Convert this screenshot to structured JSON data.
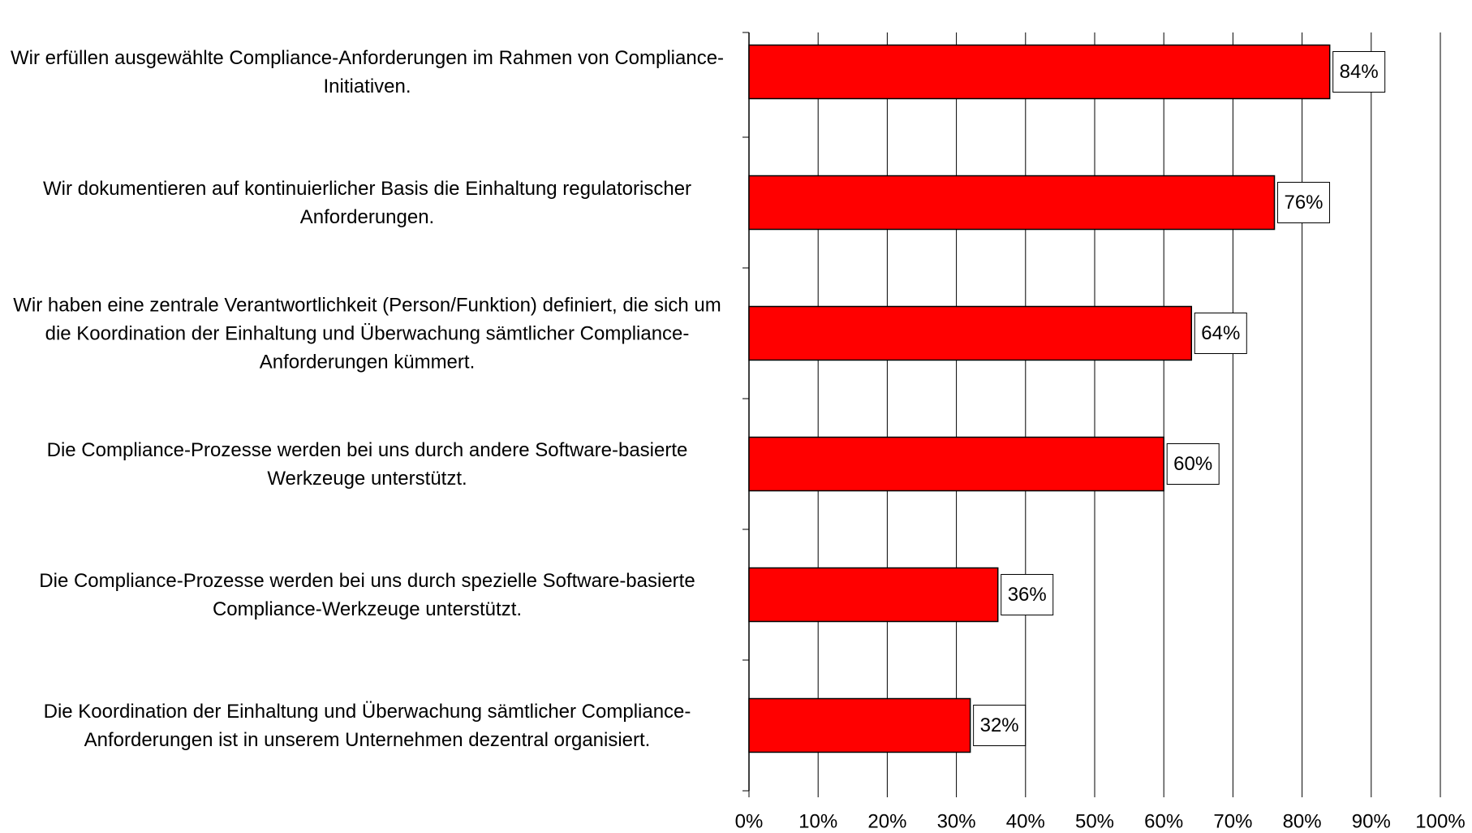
{
  "chart_data": {
    "type": "hbar",
    "categories": [
      "Wir erfüllen ausgewählte Compliance-Anforderungen im Rahmen von Compliance-Initiativen.",
      "Wir dokumentieren auf kontinuierlicher Basis die Einhaltung regulatorischer Anforderungen.",
      "Wir haben eine zentrale Verantwortlichkeit (Person/Funktion) definiert, die sich um die Koordination der Einhaltung und Überwachung sämtlicher Compliance-Anforderungen kümmert.",
      "Die Compliance-Prozesse werden bei uns durch andere Software-basierte Werkzeuge unterstützt.",
      "Die Compliance-Prozesse werden bei uns durch spezielle Software-basierte Compliance-Werkzeuge unterstützt.",
      "Die Koordination der Einhaltung und Überwachung sämtlicher Compliance-Anforderungen ist in unserem Unternehmen dezentral organisiert."
    ],
    "values": [
      84,
      76,
      64,
      60,
      36,
      32
    ],
    "value_labels": [
      "84%",
      "76%",
      "64%",
      "60%",
      "36%",
      "32%"
    ],
    "color": "#ff0000",
    "xlim": [
      0,
      100
    ],
    "xticks": [
      {
        "value": 0,
        "label": "0%"
      },
      {
        "value": 10,
        "label": "10%"
      },
      {
        "value": 20,
        "label": "20%"
      },
      {
        "value": 30,
        "label": "30%"
      },
      {
        "value": 40,
        "label": "40%"
      },
      {
        "value": 50,
        "label": "50%"
      },
      {
        "value": 60,
        "label": "60%"
      },
      {
        "value": 70,
        "label": "70%"
      },
      {
        "value": 80,
        "label": "80%"
      },
      {
        "value": 90,
        "label": "90%"
      },
      {
        "value": 100,
        "label": "100%"
      }
    ],
    "grid": true
  }
}
